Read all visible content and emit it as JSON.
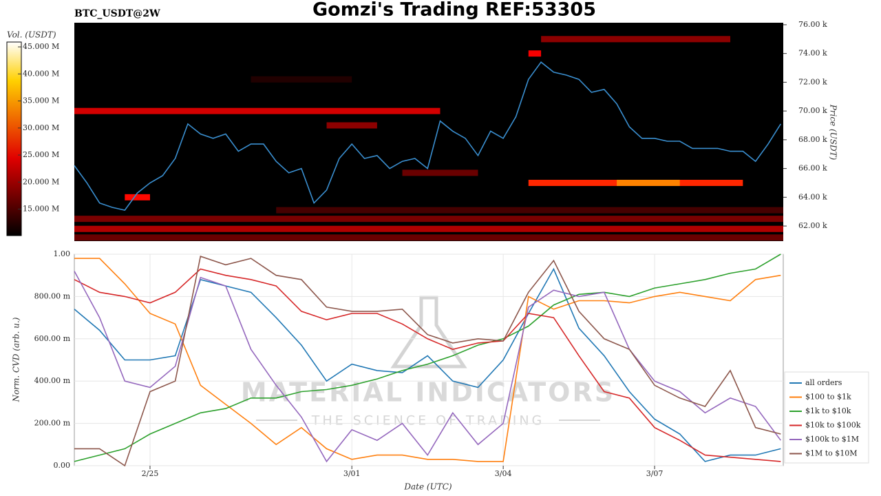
{
  "chart_data": [
    {
      "type": "heatmap",
      "title": "Gomzi's Trading REF:53305",
      "subtitle": "BTC_USDT@2W",
      "y_label": "Price (USDT)",
      "colorbar_label": "Vol. (USDT)",
      "colormap": "hot",
      "xlim": [
        54.5,
        68.55
      ],
      "ylim": [
        60950,
        76140
      ],
      "yticks": [
        {
          "value": 62000,
          "label": "62.00 k"
        },
        {
          "value": 64000,
          "label": "64.00 k"
        },
        {
          "value": 66000,
          "label": "66.00 k"
        },
        {
          "value": 68000,
          "label": "68.00 k"
        },
        {
          "value": 70000,
          "label": "70.00 k"
        },
        {
          "value": 72000,
          "label": "72.00 k"
        },
        {
          "value": 74000,
          "label": "74.00 k"
        },
        {
          "value": 76000,
          "label": "76.00 k"
        }
      ],
      "clim": [
        10100000,
        45900000
      ],
      "cticks": [
        {
          "value": 15000000,
          "label": "15.000 M"
        },
        {
          "value": 20000000,
          "label": "20.000 M"
        },
        {
          "value": 25000000,
          "label": "25.000 M"
        },
        {
          "value": 30000000,
          "label": "30.000 M"
        },
        {
          "value": 35000000,
          "label": "35.000 M"
        },
        {
          "value": 40000000,
          "label": "40.000 M"
        },
        {
          "value": 45000000,
          "label": "45.000 M"
        }
      ],
      "heatmap": {
        "prices": [
          70000,
          75000,
          65000,
          65000,
          62500,
          61800,
          61200,
          63100,
          65700,
          69000,
          72200,
          64000,
          74000
        ],
        "x_start": [
          54.5,
          63.75,
          63.5,
          65.25,
          54.5,
          54.5,
          54.5,
          58.5,
          61.0,
          59.5,
          58.0,
          55.5,
          63.5
        ],
        "x_end": [
          61.75,
          67.5,
          67.75,
          66.5,
          68.55,
          68.55,
          68.55,
          68.55,
          62.5,
          60.5,
          60.0,
          56.0,
          63.75
        ],
        "values": [
          22000000,
          18000000,
          27000000,
          33000000,
          17000000,
          20000000,
          16000000,
          14000000,
          16000000,
          18000000,
          12000000,
          25000000,
          24000000
        ]
      },
      "color": "#3a8fd0",
      "x": [
        54.5,
        54.75,
        55.0,
        55.25,
        55.5,
        55.75,
        56.0,
        56.25,
        56.5,
        56.75,
        57.0,
        57.25,
        57.5,
        57.75,
        58.0,
        58.25,
        58.5,
        58.75,
        59.0,
        59.25,
        59.5,
        59.75,
        60.0,
        60.25,
        60.5,
        60.75,
        61.0,
        61.25,
        61.5,
        61.75,
        62.0,
        62.25,
        62.5,
        62.75,
        63.0,
        63.25,
        63.5,
        63.75,
        64.0,
        64.25,
        64.5,
        64.75,
        65.0,
        65.25,
        65.5,
        65.75,
        66.0,
        66.25,
        66.5,
        66.75,
        67.0,
        67.25,
        67.5,
        67.75,
        68.0,
        68.25,
        68.5
      ],
      "values": [
        66200,
        65000,
        63600,
        63300,
        63100,
        64300,
        65000,
        65500,
        66700,
        69100,
        68400,
        68100,
        68400,
        67200,
        67700,
        67700,
        66500,
        65700,
        66000,
        63600,
        64500,
        66700,
        67700,
        66700,
        66900,
        66000,
        66500,
        66700,
        66000,
        69300,
        68600,
        68100,
        66900,
        68600,
        68100,
        69600,
        72200,
        73400,
        72700,
        72500,
        72200,
        71300,
        71500,
        70500,
        68900,
        68100,
        68100,
        67900,
        67900,
        67400,
        67400,
        67400,
        67200,
        67200,
        66500,
        67700,
        69100
      ]
    },
    {
      "type": "line",
      "x_label": "Date (UTC)",
      "y_label": "Norm. CVD (arb. u.)",
      "watermark": [
        "MATERIAL INDICATORS",
        "THE SCIENCE OF TRADING"
      ],
      "grid": true,
      "legend": "lower-right-outside",
      "xlim": [
        54.5,
        68.55
      ],
      "xticks": [
        {
          "value": 56,
          "label": "2/25"
        },
        {
          "value": 60,
          "label": "3/01"
        },
        {
          "value": 63,
          "label": "3/04"
        },
        {
          "value": 66,
          "label": "3/07"
        }
      ],
      "ylim": [
        0,
        1
      ],
      "yticks": [
        {
          "value": 0,
          "label": "0.00"
        },
        {
          "value": 0.2,
          "label": "200.00 m"
        },
        {
          "value": 0.4,
          "label": "400.00 m"
        },
        {
          "value": 0.6,
          "label": "600.00 m"
        },
        {
          "value": 0.8,
          "label": "800.00 m"
        },
        {
          "value": 1,
          "label": "1.00"
        }
      ],
      "x": [
        54.5,
        55.0,
        55.5,
        56.0,
        56.5,
        57.0,
        57.5,
        58.0,
        58.5,
        59.0,
        59.5,
        60.0,
        60.5,
        61.0,
        61.5,
        62.0,
        62.5,
        63.0,
        63.5,
        64.0,
        64.5,
        65.0,
        65.5,
        66.0,
        66.5,
        67.0,
        67.5,
        68.0,
        68.5
      ],
      "series": [
        {
          "name": "all orders",
          "color": "#1f77b4",
          "values": [
            0.74,
            0.64,
            0.5,
            0.5,
            0.52,
            0.88,
            0.85,
            0.82,
            0.7,
            0.57,
            0.4,
            0.48,
            0.45,
            0.44,
            0.52,
            0.4,
            0.37,
            0.5,
            0.72,
            0.93,
            0.65,
            0.52,
            0.35,
            0.22,
            0.15,
            0.02,
            0.05,
            0.05,
            0.08
          ]
        },
        {
          "name": "$100 to $1k",
          "color": "#ff7f0e",
          "values": [
            0.98,
            0.98,
            0.86,
            0.72,
            0.67,
            0.38,
            0.29,
            0.2,
            0.1,
            0.18,
            0.08,
            0.03,
            0.05,
            0.05,
            0.03,
            0.03,
            0.02,
            0.02,
            0.8,
            0.74,
            0.78,
            0.78,
            0.77,
            0.8,
            0.82,
            0.8,
            0.78,
            0.88,
            0.9
          ]
        },
        {
          "name": "$1k to $10k",
          "color": "#2ca02c",
          "values": [
            0.02,
            0.05,
            0.08,
            0.15,
            0.2,
            0.25,
            0.27,
            0.32,
            0.32,
            0.35,
            0.36,
            0.38,
            0.41,
            0.45,
            0.48,
            0.52,
            0.57,
            0.6,
            0.66,
            0.76,
            0.81,
            0.82,
            0.8,
            0.84,
            0.86,
            0.88,
            0.91,
            0.93,
            1.0
          ]
        },
        {
          "name": "$10k to $100k",
          "color": "#d62728",
          "values": [
            0.88,
            0.82,
            0.8,
            0.77,
            0.82,
            0.93,
            0.9,
            0.88,
            0.85,
            0.73,
            0.69,
            0.72,
            0.72,
            0.67,
            0.6,
            0.55,
            0.58,
            0.59,
            0.72,
            0.7,
            0.52,
            0.35,
            0.32,
            0.18,
            0.12,
            0.05,
            0.04,
            0.03,
            0.02
          ]
        },
        {
          "name": "$100k to $1M",
          "color": "#9467bd",
          "values": [
            0.92,
            0.7,
            0.4,
            0.37,
            0.47,
            0.89,
            0.85,
            0.55,
            0.38,
            0.23,
            0.02,
            0.17,
            0.12,
            0.2,
            0.05,
            0.25,
            0.1,
            0.2,
            0.75,
            0.83,
            0.8,
            0.82,
            0.55,
            0.4,
            0.35,
            0.25,
            0.32,
            0.28,
            0.12
          ]
        },
        {
          "name": "$1M to $10M",
          "color": "#8c564b",
          "values": [
            0.08,
            0.08,
            0.0,
            0.35,
            0.4,
            0.99,
            0.95,
            0.98,
            0.9,
            0.88,
            0.75,
            0.73,
            0.73,
            0.74,
            0.62,
            0.58,
            0.6,
            0.59,
            0.82,
            0.97,
            0.73,
            0.6,
            0.55,
            0.38,
            0.32,
            0.28,
            0.45,
            0.18,
            0.15
          ]
        }
      ]
    }
  ]
}
